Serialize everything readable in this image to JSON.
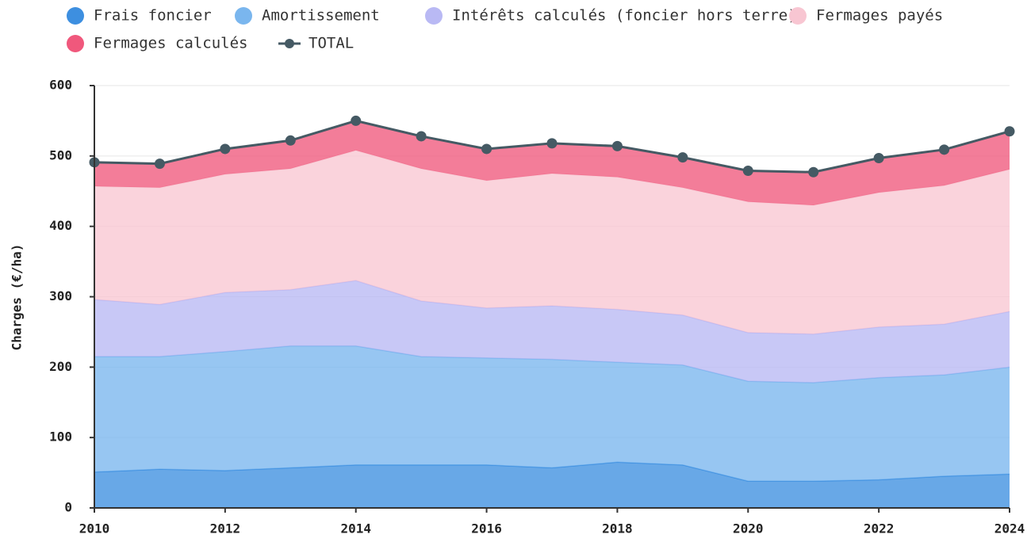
{
  "chart_data": {
    "type": "stacked_area",
    "y_label": "Charges (€/ha)",
    "x": [
      2010,
      2011,
      2012,
      2013,
      2014,
      2015,
      2016,
      2017,
      2018,
      2019,
      2020,
      2021,
      2022,
      2023,
      2024
    ],
    "xlim": [
      2010,
      2024
    ],
    "xticks": [
      2010,
      2012,
      2014,
      2016,
      2018,
      2020,
      2022,
      2024
    ],
    "ylim": [
      0,
      600
    ],
    "yticks": [
      0,
      100,
      200,
      300,
      400,
      500,
      600
    ],
    "grid": true,
    "legend": "top-left",
    "series": [
      {
        "name": "Frais foncier",
        "color": "#3d8fe0",
        "values": [
          51,
          55,
          53,
          57,
          61,
          61,
          61,
          57,
          65,
          61,
          38,
          38,
          40,
          45,
          48
        ]
      },
      {
        "name": "Amortissement",
        "color": "#7ab6ee",
        "values": [
          164,
          160,
          169,
          173,
          169,
          154,
          152,
          154,
          142,
          142,
          142,
          140,
          145,
          144,
          152
        ]
      },
      {
        "name": "Intérêts calculés (foncier hors terre)",
        "color": "#b9b9f4",
        "values": [
          81,
          74,
          84,
          80,
          93,
          79,
          71,
          76,
          75,
          71,
          69,
          69,
          72,
          72,
          79
        ]
      },
      {
        "name": "Fermages payés",
        "color": "#f8c6d2",
        "values": [
          161,
          166,
          168,
          172,
          185,
          188,
          181,
          188,
          188,
          181,
          186,
          183,
          191,
          197,
          202
        ]
      },
      {
        "name": "Fermages calculés",
        "color": "#f0587c",
        "values": [
          34,
          34,
          36,
          40,
          42,
          46,
          45,
          43,
          44,
          43,
          44,
          47,
          49,
          51,
          54
        ]
      },
      {
        "name": "TOTAL",
        "color": "#455a64",
        "style": "line",
        "values": [
          491,
          489,
          510,
          522,
          550,
          528,
          510,
          518,
          514,
          498,
          479,
          477,
          497,
          509,
          535
        ]
      }
    ]
  }
}
